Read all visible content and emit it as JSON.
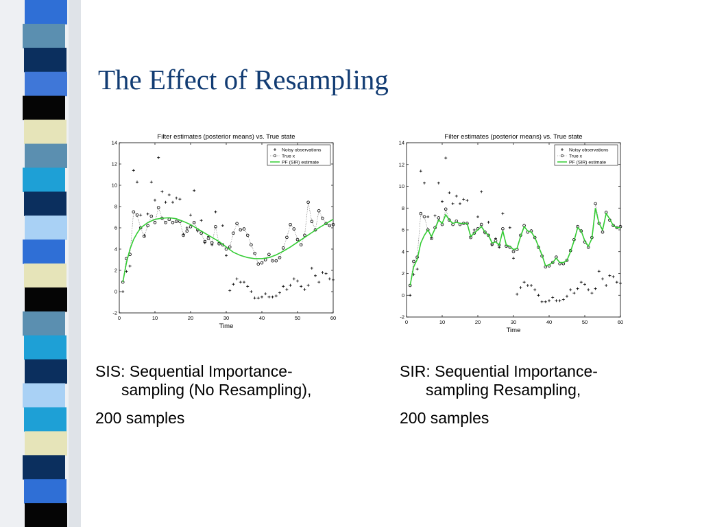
{
  "slide": {
    "title": "The Effect of Resampling",
    "sidebar_colors": [
      "#2f6fd6",
      "#5b8fb0",
      "#0b2f5e",
      "#3f77d8",
      "#050505",
      "#e6e4b9",
      "#5b8fb0",
      "#1ea0d6",
      "#0b2f5e",
      "#a9d1f5",
      "#2f6fd6",
      "#e6e4b9",
      "#050505",
      "#5b8fb0",
      "#1ea0d6",
      "#0b2f5e",
      "#a9d1f5",
      "#1ea0d6",
      "#e6e4b9",
      "#0b2f5e",
      "#2f6fd6",
      "#050505"
    ]
  },
  "captions": {
    "left": {
      "line1": "SIS: Sequential Importance-",
      "line2": "sampling (No Resampling),",
      "line3": "200 samples"
    },
    "right": {
      "line1": "SIR: Sequential Importance-",
      "line2": "sampling Resampling,",
      "line3": "200 samples"
    }
  },
  "chart_data": [
    {
      "type": "line",
      "title": "Filter estimates (posterior means) vs. True state",
      "xlabel": "Time",
      "ylabel": "",
      "xlim": [
        0,
        60
      ],
      "ylim": [
        -2,
        14
      ],
      "xticks": [
        0,
        10,
        20,
        30,
        40,
        50,
        60
      ],
      "yticks": [
        -2,
        0,
        2,
        4,
        6,
        8,
        10,
        12,
        14
      ],
      "legend_position": "top-right",
      "grid": false,
      "series": [
        {
          "name": "Noisy observations",
          "style": "plus",
          "color": "#000000",
          "x": [
            1,
            2,
            3,
            4,
            5,
            6,
            7,
            8,
            9,
            10,
            11,
            12,
            13,
            14,
            15,
            16,
            17,
            18,
            19,
            20,
            21,
            22,
            23,
            24,
            25,
            26,
            27,
            28,
            29,
            30,
            31,
            32,
            33,
            34,
            35,
            36,
            37,
            38,
            39,
            40,
            41,
            42,
            43,
            44,
            45,
            46,
            47,
            48,
            49,
            50,
            51,
            52,
            53,
            54,
            55,
            56,
            57,
            58,
            59,
            60
          ],
          "y": [
            0.0,
            1.9,
            2.4,
            11.4,
            10.3,
            7.2,
            5.3,
            7.3,
            10.3,
            8.6,
            12.6,
            9.4,
            8.4,
            9.1,
            8.4,
            8.8,
            8.7,
            5.4,
            6.0,
            7.2,
            9.5,
            5.7,
            6.7,
            4.6,
            5.2,
            4.4,
            7.5,
            4.6,
            6.2,
            3.4,
            0.1,
            0.7,
            1.2,
            0.9,
            0.9,
            0.5,
            0.0,
            -0.6,
            -0.6,
            -0.5,
            -0.2,
            -0.5,
            -0.5,
            -0.4,
            -0.1,
            0.5,
            0.2,
            0.6,
            1.2,
            1.0,
            0.5,
            0.2,
            0.6,
            2.2,
            1.5,
            0.9,
            1.8,
            1.7,
            1.2,
            1.1
          ]
        },
        {
          "name": "True x",
          "style": "circle-dotted",
          "color": "#000000",
          "x": [
            1,
            2,
            3,
            4,
            5,
            6,
            7,
            8,
            9,
            10,
            11,
            12,
            13,
            14,
            15,
            16,
            17,
            18,
            19,
            20,
            21,
            22,
            23,
            24,
            25,
            26,
            27,
            28,
            29,
            30,
            31,
            32,
            33,
            34,
            35,
            36,
            37,
            38,
            39,
            40,
            41,
            42,
            43,
            44,
            45,
            46,
            47,
            48,
            49,
            50,
            51,
            52,
            53,
            54,
            55,
            56,
            57,
            58,
            59,
            60
          ],
          "y": [
            0.9,
            3.1,
            3.5,
            7.5,
            7.2,
            6.0,
            5.2,
            6.2,
            7.1,
            6.5,
            7.9,
            6.9,
            6.5,
            6.8,
            6.5,
            6.6,
            6.6,
            5.3,
            5.7,
            6.1,
            6.5,
            5.8,
            5.5,
            4.7,
            5.0,
            4.6,
            6.1,
            4.5,
            4.4,
            4.0,
            4.2,
            5.5,
            6.4,
            5.8,
            5.9,
            5.3,
            4.4,
            3.6,
            2.6,
            2.7,
            3.0,
            3.5,
            2.9,
            2.9,
            3.2,
            4.1,
            5.1,
            6.3,
            5.9,
            4.9,
            4.4,
            5.3,
            8.4,
            6.6,
            5.8,
            7.6,
            6.9,
            6.4,
            6.2,
            6.3
          ]
        },
        {
          "name": "PF  (SIR) estimate",
          "style": "line",
          "color": "#33cc33",
          "x": [
            1,
            2,
            3,
            4,
            5,
            6,
            8,
            10,
            12,
            14,
            16,
            18,
            20,
            22,
            24,
            26,
            28,
            30,
            32,
            34,
            36,
            38,
            40,
            42,
            44,
            46,
            48,
            50,
            52,
            54,
            56,
            58,
            60
          ],
          "y": [
            0.9,
            2.7,
            4.0,
            4.9,
            5.5,
            6.0,
            6.5,
            6.8,
            6.9,
            6.95,
            6.85,
            6.6,
            6.3,
            5.9,
            5.5,
            5.1,
            4.7,
            4.2,
            3.7,
            3.4,
            3.2,
            3.1,
            3.1,
            3.2,
            3.45,
            3.8,
            4.2,
            4.65,
            5.1,
            5.55,
            6.0,
            6.4,
            6.8
          ]
        }
      ]
    },
    {
      "type": "line",
      "title": "Filter estimates (posterior means) vs. True state",
      "xlabel": "Time",
      "ylabel": "",
      "xlim": [
        0,
        60
      ],
      "ylim": [
        -2,
        14
      ],
      "xticks": [
        0,
        10,
        20,
        30,
        40,
        50,
        60
      ],
      "yticks": [
        -2,
        0,
        2,
        4,
        6,
        8,
        10,
        12,
        14
      ],
      "legend_position": "top-right",
      "grid": false,
      "series": [
        {
          "name": "Noisy observations",
          "style": "plus",
          "color": "#000000",
          "x": [
            1,
            2,
            3,
            4,
            5,
            6,
            7,
            8,
            9,
            10,
            11,
            12,
            13,
            14,
            15,
            16,
            17,
            18,
            19,
            20,
            21,
            22,
            23,
            24,
            25,
            26,
            27,
            28,
            29,
            30,
            31,
            32,
            33,
            34,
            35,
            36,
            37,
            38,
            39,
            40,
            41,
            42,
            43,
            44,
            45,
            46,
            47,
            48,
            49,
            50,
            51,
            52,
            53,
            54,
            55,
            56,
            57,
            58,
            59,
            60
          ],
          "y": [
            0.0,
            1.9,
            2.4,
            11.4,
            10.3,
            7.2,
            5.3,
            7.3,
            10.3,
            8.6,
            12.6,
            9.4,
            8.4,
            9.1,
            8.4,
            8.8,
            8.7,
            5.4,
            6.0,
            7.2,
            9.5,
            5.7,
            6.7,
            4.6,
            5.2,
            4.4,
            7.5,
            4.6,
            6.2,
            3.4,
            0.1,
            0.7,
            1.2,
            0.9,
            0.9,
            0.5,
            0.0,
            -0.6,
            -0.6,
            -0.5,
            -0.2,
            -0.5,
            -0.5,
            -0.4,
            -0.1,
            0.5,
            0.2,
            0.6,
            1.2,
            1.0,
            0.5,
            0.2,
            0.6,
            2.2,
            1.5,
            0.9,
            1.8,
            1.7,
            1.2,
            1.1
          ]
        },
        {
          "name": "True x",
          "style": "circle-dotted",
          "color": "#000000",
          "x": [
            1,
            2,
            3,
            4,
            5,
            6,
            7,
            8,
            9,
            10,
            11,
            12,
            13,
            14,
            15,
            16,
            17,
            18,
            19,
            20,
            21,
            22,
            23,
            24,
            25,
            26,
            27,
            28,
            29,
            30,
            31,
            32,
            33,
            34,
            35,
            36,
            37,
            38,
            39,
            40,
            41,
            42,
            43,
            44,
            45,
            46,
            47,
            48,
            49,
            50,
            51,
            52,
            53,
            54,
            55,
            56,
            57,
            58,
            59,
            60
          ],
          "y": [
            0.9,
            3.1,
            3.5,
            7.5,
            7.2,
            6.0,
            5.2,
            6.2,
            7.1,
            6.5,
            7.9,
            6.9,
            6.5,
            6.8,
            6.5,
            6.6,
            6.6,
            5.3,
            5.7,
            6.1,
            6.5,
            5.8,
            5.5,
            4.7,
            5.0,
            4.6,
            6.1,
            4.5,
            4.4,
            4.0,
            4.2,
            5.5,
            6.4,
            5.8,
            5.9,
            5.3,
            4.4,
            3.6,
            2.6,
            2.7,
            3.0,
            3.5,
            2.9,
            2.9,
            3.2,
            4.1,
            5.1,
            6.3,
            5.9,
            4.9,
            4.4,
            5.3,
            8.4,
            6.6,
            5.8,
            7.6,
            6.9,
            6.4,
            6.2,
            6.3
          ]
        },
        {
          "name": "PF  (SIR) estimate",
          "style": "line",
          "color": "#33cc33",
          "x": [
            1,
            2,
            3,
            4,
            5,
            6,
            7,
            8,
            9,
            10,
            11,
            12,
            13,
            14,
            15,
            16,
            17,
            18,
            19,
            20,
            21,
            22,
            23,
            24,
            25,
            26,
            27,
            28,
            29,
            30,
            31,
            32,
            33,
            34,
            35,
            36,
            37,
            38,
            39,
            40,
            41,
            42,
            43,
            44,
            45,
            46,
            47,
            48,
            49,
            50,
            51,
            52,
            53,
            54,
            55,
            56,
            57,
            58,
            59,
            60
          ],
          "y": [
            0.9,
            2.6,
            3.3,
            4.8,
            5.5,
            6.0,
            5.4,
            6.1,
            6.9,
            6.6,
            7.4,
            6.9,
            6.6,
            6.7,
            6.6,
            6.6,
            6.6,
            5.4,
            5.7,
            6.0,
            6.3,
            5.8,
            5.5,
            4.8,
            4.9,
            4.6,
            5.9,
            4.6,
            4.5,
            4.2,
            4.3,
            5.4,
            6.3,
            5.9,
            5.8,
            5.3,
            4.5,
            3.7,
            2.7,
            2.8,
            3.0,
            3.4,
            3.0,
            3.0,
            3.2,
            4.0,
            5.0,
            6.2,
            5.9,
            5.0,
            4.5,
            5.2,
            8.0,
            6.6,
            6.0,
            7.5,
            7.0,
            6.4,
            6.2,
            6.2
          ]
        }
      ]
    }
  ]
}
